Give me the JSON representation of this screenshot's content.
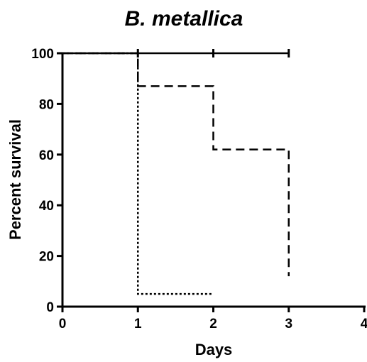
{
  "chart_data": {
    "type": "line",
    "title": "B. metallica",
    "xlabel": "Days",
    "ylabel": "Percent survival",
    "xlim": [
      0,
      4
    ],
    "ylim": [
      0,
      100
    ],
    "x_ticks": [
      0,
      1,
      2,
      3,
      4
    ],
    "y_ticks": [
      0,
      20,
      40,
      60,
      80,
      100
    ],
    "step": true,
    "grid": false,
    "series": [
      {
        "style": "solid",
        "points": [
          [
            0,
            100
          ],
          [
            1,
            100
          ],
          [
            2,
            100
          ],
          [
            3,
            100
          ]
        ]
      },
      {
        "style": "dashed",
        "points": [
          [
            0,
            100
          ],
          [
            1,
            87
          ],
          [
            2,
            62
          ],
          [
            3,
            12
          ]
        ]
      },
      {
        "style": "dotted",
        "points": [
          [
            0,
            100
          ],
          [
            1,
            5
          ],
          [
            2,
            5
          ]
        ]
      }
    ]
  }
}
